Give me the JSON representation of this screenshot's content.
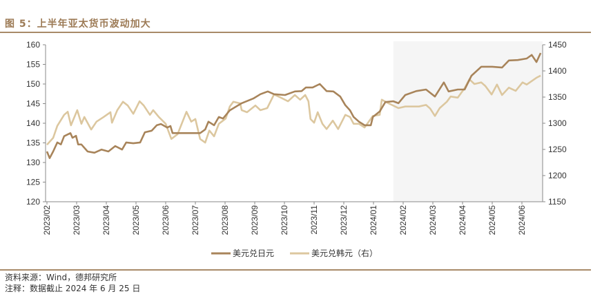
{
  "title": "图 5：上半年亚太货币波动加大",
  "footer": {
    "source": "资料来源：Wind，德邦研究所",
    "note": "注释：数据截止 2024 年 6 月 25 日"
  },
  "colors": {
    "jpy": "#a8845a",
    "krw": "#dcc79f",
    "shade": "#f5f5f5",
    "accent": "#9c7a55"
  },
  "chart_data": {
    "type": "line",
    "title": "图 5：上半年亚太货币波动加大",
    "x_unit": "months since 2023/02",
    "x_range": [
      0,
      16.7
    ],
    "x_ticks": [
      "2023/02",
      "2023/03",
      "2023/04",
      "2023/05",
      "2023/06",
      "2023/07",
      "2023/08",
      "2023/09",
      "2023/10",
      "2023/11",
      "2023/12",
      "2024/01",
      "2024/02",
      "2024/03",
      "2024/04",
      "2024/05",
      "2024/06"
    ],
    "y_left": {
      "range": [
        120,
        160
      ],
      "ticks": [
        "120",
        "125",
        "130",
        "135",
        "140",
        "145",
        "150",
        "155",
        "160"
      ]
    },
    "y_right": {
      "range": [
        1150,
        1450
      ],
      "ticks": [
        "1150",
        "1200",
        "1250",
        "1300",
        "1350",
        "1400",
        "1450"
      ]
    },
    "shaded_region": [
      11.67,
      16.7
    ],
    "legend_position": "bottom",
    "series": [
      {
        "name": "美元兑日元",
        "axis": "left",
        "points": [
          [
            0,
            132.8
          ],
          [
            0.09,
            131.1
          ],
          [
            0.21,
            132.8
          ],
          [
            0.35,
            135.1
          ],
          [
            0.47,
            134.6
          ],
          [
            0.58,
            136.7
          ],
          [
            0.79,
            137.5
          ],
          [
            0.86,
            136.3
          ],
          [
            0.98,
            136.8
          ],
          [
            1.05,
            134.6
          ],
          [
            1.16,
            134.6
          ],
          [
            1.37,
            132.8
          ],
          [
            1.6,
            132.5
          ],
          [
            1.84,
            133.3
          ],
          [
            2.07,
            132.8
          ],
          [
            2.3,
            134.2
          ],
          [
            2.53,
            133.3
          ],
          [
            2.67,
            135.1
          ],
          [
            2.91,
            134.9
          ],
          [
            3.14,
            135.1
          ],
          [
            3.3,
            137.7
          ],
          [
            3.53,
            138.1
          ],
          [
            3.7,
            139.5
          ],
          [
            3.84,
            139.8
          ],
          [
            4.05,
            138.9
          ],
          [
            4.16,
            139.3
          ],
          [
            4.23,
            137.5
          ],
          [
            4.47,
            137.5
          ],
          [
            5.16,
            137.5
          ],
          [
            5.33,
            138.4
          ],
          [
            5.44,
            140.4
          ],
          [
            5.63,
            139.5
          ],
          [
            5.79,
            141.6
          ],
          [
            5.93,
            141.2
          ],
          [
            6.16,
            143.3
          ],
          [
            6.56,
            145.1
          ],
          [
            6.95,
            146.3
          ],
          [
            7.19,
            147.4
          ],
          [
            7.44,
            148.1
          ],
          [
            7.65,
            147.4
          ],
          [
            8.02,
            147.2
          ],
          [
            8.35,
            148.1
          ],
          [
            8.58,
            148.2
          ],
          [
            8.72,
            149.1
          ],
          [
            8.95,
            149.1
          ],
          [
            9.19,
            150.0
          ],
          [
            9.42,
            148.2
          ],
          [
            9.65,
            148.1
          ],
          [
            9.88,
            146.8
          ],
          [
            10.05,
            144.6
          ],
          [
            10.21,
            143.3
          ],
          [
            10.33,
            141.6
          ],
          [
            10.51,
            140.4
          ],
          [
            10.7,
            139.5
          ],
          [
            10.91,
            139.5
          ],
          [
            10.98,
            141.6
          ],
          [
            11.21,
            143.0
          ],
          [
            11.4,
            145.4
          ],
          [
            11.67,
            145.6
          ],
          [
            11.84,
            145.1
          ],
          [
            12.07,
            147.2
          ],
          [
            12.44,
            148.2
          ],
          [
            12.77,
            148.6
          ],
          [
            13.07,
            146.8
          ],
          [
            13.37,
            150.4
          ],
          [
            13.53,
            148.1
          ],
          [
            13.84,
            148.6
          ],
          [
            14.07,
            148.6
          ],
          [
            14.3,
            152.1
          ],
          [
            14.63,
            154.4
          ],
          [
            15.0,
            154.4
          ],
          [
            15.33,
            154.2
          ],
          [
            15.56,
            156.0
          ],
          [
            15.86,
            156.1
          ],
          [
            16.16,
            156.5
          ],
          [
            16.33,
            157.4
          ],
          [
            16.49,
            155.6
          ],
          [
            16.63,
            157.9
          ]
        ]
      },
      {
        "name": "美元兑韩元（右）",
        "axis": "right",
        "points": [
          [
            0,
            1259
          ],
          [
            0.21,
            1272
          ],
          [
            0.35,
            1295
          ],
          [
            0.58,
            1316
          ],
          [
            0.7,
            1322
          ],
          [
            0.81,
            1296
          ],
          [
            1.02,
            1325
          ],
          [
            1.16,
            1299
          ],
          [
            1.26,
            1312
          ],
          [
            1.49,
            1288
          ],
          [
            1.67,
            1303
          ],
          [
            1.91,
            1312
          ],
          [
            2.14,
            1321
          ],
          [
            2.19,
            1301
          ],
          [
            2.37,
            1325
          ],
          [
            2.56,
            1341
          ],
          [
            2.72,
            1334
          ],
          [
            2.91,
            1318
          ],
          [
            3.12,
            1342
          ],
          [
            3.26,
            1334
          ],
          [
            3.47,
            1316
          ],
          [
            3.58,
            1325
          ],
          [
            3.77,
            1312
          ],
          [
            4.0,
            1299
          ],
          [
            4.19,
            1270
          ],
          [
            4.4,
            1279
          ],
          [
            4.7,
            1322
          ],
          [
            4.86,
            1303
          ],
          [
            5.0,
            1308
          ],
          [
            5.16,
            1270
          ],
          [
            5.33,
            1263
          ],
          [
            5.47,
            1286
          ],
          [
            5.63,
            1275
          ],
          [
            5.79,
            1299
          ],
          [
            6.02,
            1309
          ],
          [
            6.16,
            1332
          ],
          [
            6.28,
            1341
          ],
          [
            6.51,
            1338
          ],
          [
            6.56,
            1325
          ],
          [
            6.74,
            1321
          ],
          [
            7.02,
            1334
          ],
          [
            7.19,
            1325
          ],
          [
            7.42,
            1329
          ],
          [
            7.65,
            1355
          ],
          [
            7.88,
            1349
          ],
          [
            8.12,
            1342
          ],
          [
            8.35,
            1354
          ],
          [
            8.53,
            1345
          ],
          [
            8.7,
            1354
          ],
          [
            8.81,
            1342
          ],
          [
            8.88,
            1308
          ],
          [
            9.0,
            1301
          ],
          [
            9.12,
            1321
          ],
          [
            9.28,
            1299
          ],
          [
            9.42,
            1289
          ],
          [
            9.63,
            1305
          ],
          [
            9.81,
            1289
          ],
          [
            10.05,
            1316
          ],
          [
            10.21,
            1312
          ],
          [
            10.33,
            1299
          ],
          [
            10.51,
            1299
          ],
          [
            10.7,
            1292
          ],
          [
            10.98,
            1314
          ],
          [
            11.21,
            1316
          ],
          [
            11.28,
            1345
          ],
          [
            11.51,
            1338
          ],
          [
            11.84,
            1329
          ],
          [
            12.07,
            1332
          ],
          [
            12.53,
            1332
          ],
          [
            12.77,
            1335
          ],
          [
            12.91,
            1328
          ],
          [
            13.07,
            1314
          ],
          [
            13.23,
            1329
          ],
          [
            13.47,
            1341
          ],
          [
            13.6,
            1351
          ],
          [
            13.84,
            1349
          ],
          [
            14.07,
            1367
          ],
          [
            14.23,
            1384
          ],
          [
            14.4,
            1375
          ],
          [
            14.63,
            1378
          ],
          [
            14.77,
            1371
          ],
          [
            14.98,
            1355
          ],
          [
            15.16,
            1374
          ],
          [
            15.33,
            1354
          ],
          [
            15.56,
            1368
          ],
          [
            15.79,
            1362
          ],
          [
            16.02,
            1378
          ],
          [
            16.16,
            1374
          ],
          [
            16.49,
            1387
          ],
          [
            16.63,
            1391
          ]
        ]
      }
    ]
  }
}
